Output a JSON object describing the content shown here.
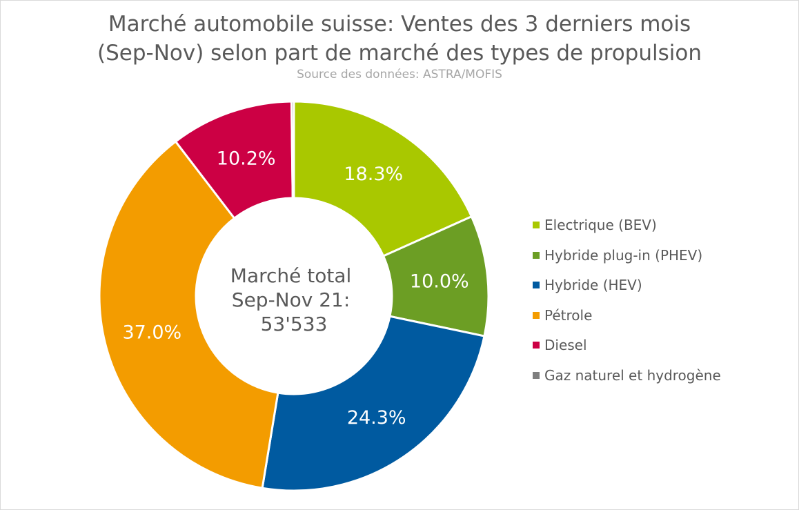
{
  "chart_data": {
    "type": "pie",
    "title_line1": "Marché automobile suisse: Ventes des 3 derniers mois",
    "title_line2": "(Sep-Nov) selon part de marché des types de propulsion",
    "subtitle": "Source des données: ASTRA/MOFIS",
    "center_label": [
      "Marché total",
      "Sep-Nov 21:",
      "53'533"
    ],
    "slices": [
      {
        "name": "Electrique (BEV)",
        "value": 18.3,
        "label": "18.3%",
        "color": "#a9c800"
      },
      {
        "name": "Hybride plug-in (PHEV)",
        "value": 10.0,
        "label": "10.0%",
        "color": "#6c9e24"
      },
      {
        "name": "Hybride (HEV)",
        "value": 24.3,
        "label": "24.3%",
        "color": "#005aa0"
      },
      {
        "name": "Pétrole",
        "value": 37.0,
        "label": "37.0%",
        "color": "#f39c00"
      },
      {
        "name": "Diesel",
        "value": 10.2,
        "label": "10.2%",
        "color": "#cc0044"
      },
      {
        "name": "Gaz naturel et hydrogène",
        "value": 0.2,
        "label": "",
        "color": "#7f7f7f"
      }
    ],
    "legend_position": "right"
  }
}
